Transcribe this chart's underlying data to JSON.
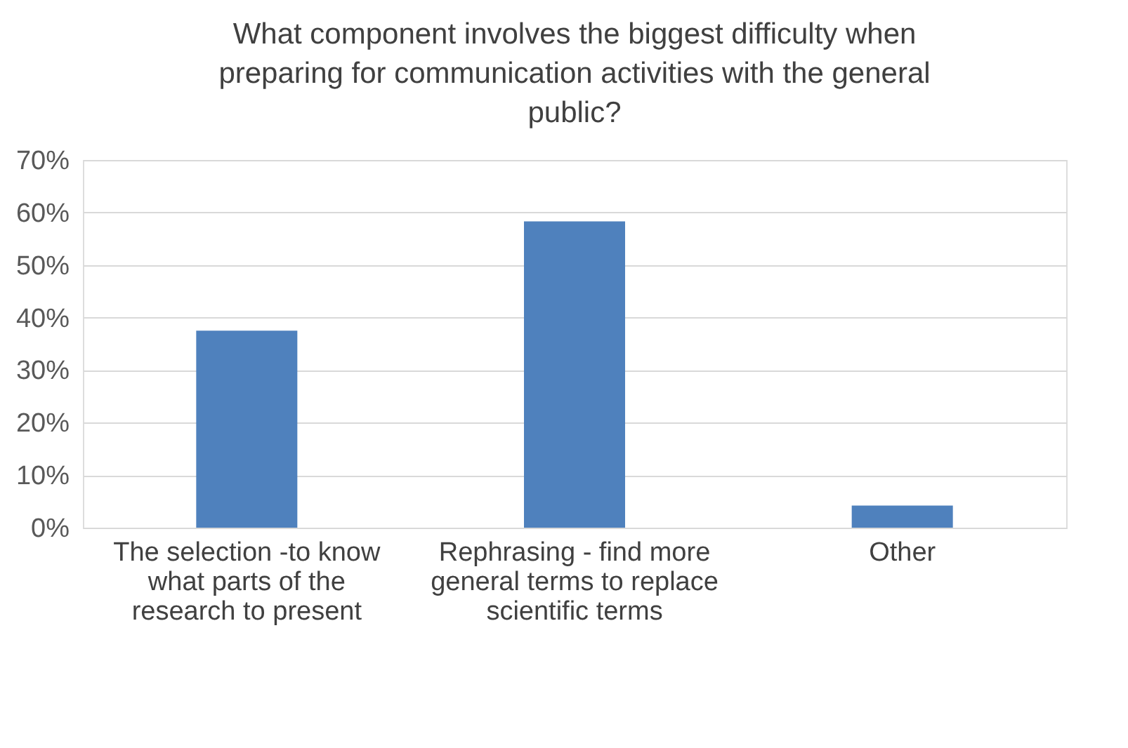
{
  "chart_data": {
    "type": "bar",
    "title": "What component involves the biggest difficulty when preparing for communication activities with the general public?",
    "categories": [
      "The selection -to know what parts of the research to present",
      "Rephrasing - find more general terms to replace scientific terms",
      "Other"
    ],
    "values": [
      37.5,
      58.3,
      4.2
    ],
    "color": "#4f81bd",
    "ylim": [
      0,
      70
    ],
    "yticks": [
      {
        "value": 0,
        "label": "0%"
      },
      {
        "value": 10,
        "label": "10%"
      },
      {
        "value": 20,
        "label": "20%"
      },
      {
        "value": 30,
        "label": "30%"
      },
      {
        "value": 40,
        "label": "40%"
      },
      {
        "value": 50,
        "label": "50%"
      },
      {
        "value": 60,
        "label": "60%"
      },
      {
        "value": 70,
        "label": "70%"
      }
    ],
    "grid": "y"
  }
}
